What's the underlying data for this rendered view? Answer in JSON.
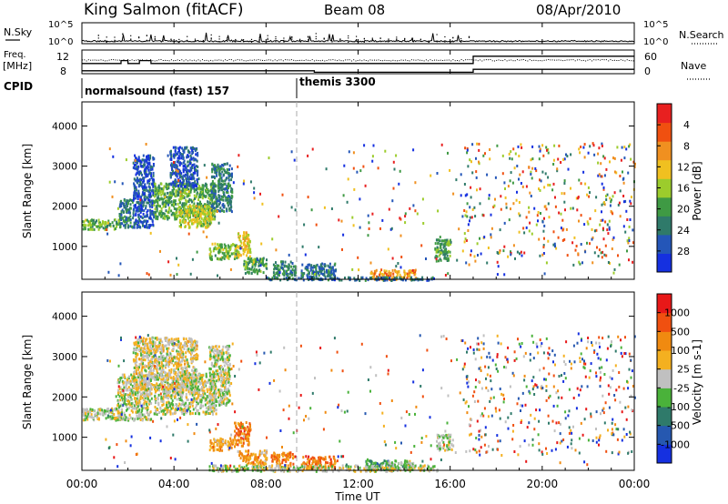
{
  "header": {
    "station": "King Salmon (fitACF)",
    "beam": "Beam 08",
    "date": "08/Apr/2010"
  },
  "chart_data": [
    {
      "type": "line",
      "panel": "noise",
      "left_label": "N.Sky",
      "right_label": "N.Search",
      "left_ticks": [
        "10^5",
        "10^0"
      ],
      "right_ticks": [
        "10^5",
        "10^0"
      ]
    },
    {
      "type": "line",
      "panel": "frequency",
      "left_label_1": "Freq.",
      "left_label_2": "[MHz]",
      "right_label": "Nave",
      "left_ticks": [
        "12",
        "8"
      ],
      "right_ticks": [
        "60",
        "0"
      ],
      "series": [
        {
          "name": "Freq.",
          "x": [
            0,
            1.7,
            1.7,
            2.0,
            2.0,
            2.5,
            2.5,
            3.0,
            3.0,
            17.0,
            17.0,
            24
          ],
          "values": [
            10.8,
            10.8,
            11.6,
            11.6,
            10.8,
            10.8,
            11.6,
            11.6,
            10.8,
            10.8,
            12.8,
            12.8
          ]
        },
        {
          "name": "Nave",
          "x": [
            0,
            10.1,
            10.1,
            17.0,
            17.0,
            24
          ],
          "values": [
            12,
            12,
            6,
            6,
            18,
            18
          ]
        }
      ]
    },
    {
      "type": "table",
      "panel": "cpid",
      "label": "CPID",
      "entries": [
        {
          "start": 0.0,
          "text": "normalsound (fast) 157"
        },
        {
          "start": 9.35,
          "text": "themis 3300"
        }
      ]
    },
    {
      "type": "heatmap",
      "panel": "power",
      "ylabel": "Slant Range [km]",
      "xlim": [
        0,
        24
      ],
      "ylim": [
        180,
        4600
      ],
      "yticks": [
        1000,
        2000,
        3000,
        4000
      ],
      "colorbar": {
        "label": "Power [dB]",
        "ticks": [
          "4",
          "8",
          "12",
          "16",
          "20",
          "24",
          "28"
        ],
        "colors": [
          "#1530e0",
          "#2456b8",
          "#2f7a6a",
          "#3f9a44",
          "#9ccc2c",
          "#f0c020",
          "#f09020",
          "#f05010",
          "#e82020"
        ]
      },
      "clusters": [
        {
          "x": [
            0.0,
            1.6
          ],
          "y": [
            1450,
            1700
          ],
          "level": 0.42
        },
        {
          "x": [
            1.6,
            2.2
          ],
          "y": [
            1500,
            2200
          ],
          "level": 0.22
        },
        {
          "x": [
            2.2,
            3.1
          ],
          "y": [
            1500,
            3300
          ],
          "level": 0.12
        },
        {
          "x": [
            3.1,
            5.8
          ],
          "y": [
            1700,
            2600
          ],
          "level": 0.4
        },
        {
          "x": [
            4.2,
            5.6
          ],
          "y": [
            1500,
            2050
          ],
          "level": 0.55
        },
        {
          "x": [
            5.6,
            6.5
          ],
          "y": [
            1900,
            3100
          ],
          "level": 0.25
        },
        {
          "x": [
            3.8,
            5.0
          ],
          "y": [
            2500,
            3500
          ],
          "level": 0.12
        },
        {
          "x": [
            5.5,
            6.8
          ],
          "y": [
            700,
            1100
          ],
          "level": 0.45
        },
        {
          "x": [
            6.7,
            7.3
          ],
          "y": [
            800,
            1400
          ],
          "level": 0.62
        },
        {
          "x": [
            7.0,
            8.0
          ],
          "y": [
            350,
            750
          ],
          "level": 0.38
        },
        {
          "x": [
            8.3,
            9.3
          ],
          "y": [
            300,
            650
          ],
          "level": 0.28
        },
        {
          "x": [
            9.5,
            11.0
          ],
          "y": [
            250,
            600
          ],
          "level": 0.22
        },
        {
          "x": [
            12.5,
            14.5
          ],
          "y": [
            200,
            450
          ],
          "level": 0.72
        },
        {
          "x": [
            15.3,
            16.0
          ],
          "y": [
            650,
            1200
          ],
          "level": 0.35
        },
        {
          "x": [
            8.0,
            15.5
          ],
          "y": [
            180,
            260
          ],
          "level": 0.2
        }
      ],
      "scatter": [
        {
          "x": [
            1.0,
            24.0
          ],
          "y": [
            300,
            3600
          ],
          "density": 0.02
        },
        {
          "x": [
            16.5,
            24.0
          ],
          "y": [
            600,
            3600
          ],
          "density": 0.08
        }
      ]
    },
    {
      "type": "heatmap",
      "panel": "velocity",
      "xlabel": "Time UT",
      "ylabel": "Slant Range [km]",
      "xlim": [
        0,
        24
      ],
      "ylim": [
        180,
        4600
      ],
      "xticks": [
        "00:00",
        "04:00",
        "08:00",
        "12:00",
        "16:00",
        "20:00",
        "00:00"
      ],
      "yticks": [
        1000,
        2000,
        3000,
        4000
      ],
      "colorbar": {
        "label": "Velocity [m s-1]",
        "ticks": [
          "1000",
          "500",
          "100",
          "25",
          "-25",
          "-100",
          "-500",
          "-1000"
        ],
        "colors": [
          "#1530e0",
          "#2658b0",
          "#2f7a6a",
          "#4ab23a",
          "#c0c0c0",
          "#f4b020",
          "#f08a10",
          "#f05010",
          "#e81818"
        ]
      },
      "clusters": [
        {
          "x": [
            0.0,
            1.6
          ],
          "y": [
            1450,
            1750
          ],
          "level": 0.48
        },
        {
          "x": [
            1.5,
            3.0
          ],
          "y": [
            1450,
            2600
          ],
          "level": 0.5
        },
        {
          "x": [
            2.2,
            5.0
          ],
          "y": [
            2200,
            3500
          ],
          "level": 0.55
        },
        {
          "x": [
            3.1,
            5.8
          ],
          "y": [
            1600,
            2600
          ],
          "level": 0.5
        },
        {
          "x": [
            5.5,
            6.4
          ],
          "y": [
            1800,
            3300
          ],
          "level": 0.48
        },
        {
          "x": [
            5.5,
            6.7
          ],
          "y": [
            700,
            1000
          ],
          "level": 0.68
        },
        {
          "x": [
            6.6,
            7.3
          ],
          "y": [
            800,
            1400
          ],
          "level": 0.8
        },
        {
          "x": [
            6.8,
            8.0
          ],
          "y": [
            350,
            700
          ],
          "level": 0.7
        },
        {
          "x": [
            8.2,
            9.2
          ],
          "y": [
            320,
            650
          ],
          "level": 0.76
        },
        {
          "x": [
            9.5,
            11.0
          ],
          "y": [
            250,
            550
          ],
          "level": 0.8
        },
        {
          "x": [
            12.3,
            13.5
          ],
          "y": [
            200,
            450
          ],
          "level": 0.3
        },
        {
          "x": [
            13.2,
            14.5
          ],
          "y": [
            200,
            450
          ],
          "level": 0.45
        },
        {
          "x": [
            15.4,
            16.1
          ],
          "y": [
            700,
            1100
          ],
          "level": 0.46
        },
        {
          "x": [
            5.5,
            15.5
          ],
          "y": [
            180,
            330
          ],
          "level": 0.49
        }
      ],
      "scatter": [
        {
          "x": [
            1.0,
            24.0
          ],
          "y": [
            300,
            3600
          ],
          "density": 0.02
        },
        {
          "x": [
            16.5,
            24.0
          ],
          "y": [
            600,
            3600
          ],
          "density": 0.08
        }
      ]
    }
  ]
}
